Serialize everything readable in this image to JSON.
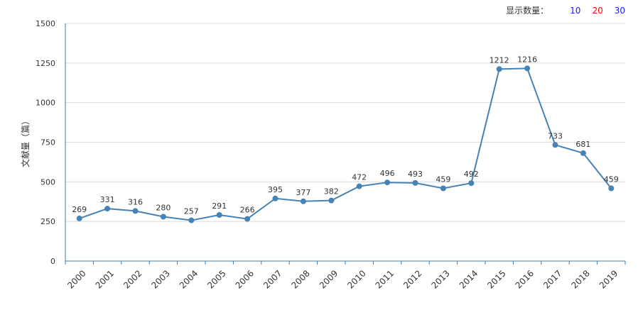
{
  "controls": {
    "label": "显示数量：",
    "options": [
      {
        "label": "10",
        "color": "#1a1aff"
      },
      {
        "label": "20",
        "color": "#ff0000"
      },
      {
        "label": "30",
        "color": "#1a1aff"
      }
    ]
  },
  "chart_data": {
    "type": "line",
    "ylabel": "文献量（篇）",
    "xlabel": "",
    "ylim": [
      0,
      1500
    ],
    "yticks": [
      0,
      250,
      500,
      750,
      1000,
      1250,
      1500
    ],
    "categories": [
      "2000",
      "2001",
      "2002",
      "2003",
      "2004",
      "2005",
      "2006",
      "2007",
      "2008",
      "2009",
      "2010",
      "2011",
      "2012",
      "2013",
      "2014",
      "2015",
      "2016",
      "2017",
      "2018",
      "2019"
    ],
    "values": [
      269,
      331,
      316,
      280,
      257,
      291,
      266,
      395,
      377,
      382,
      472,
      496,
      493,
      459,
      492,
      1212,
      1216,
      733,
      681,
      459
    ],
    "line_color": "#4682b4",
    "grid": true
  }
}
